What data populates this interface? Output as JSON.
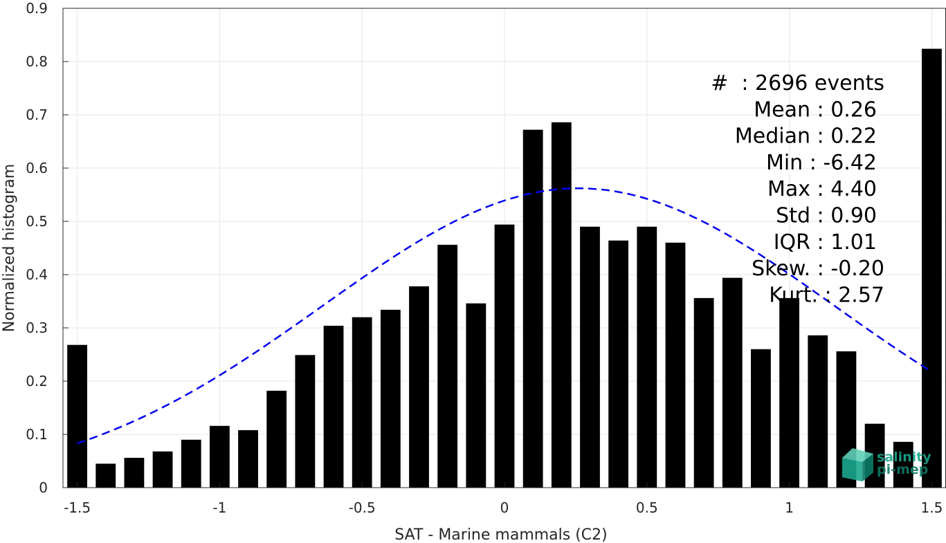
{
  "chart_data": {
    "type": "bar",
    "xlabel": "SAT - Marine mammals (C2)",
    "ylabel": "Normalized histogram",
    "xlim": [
      -1.55,
      1.55
    ],
    "ylim": [
      0,
      0.9
    ],
    "grid": true,
    "x_ticks": [
      -1.5,
      -1,
      -0.5,
      0,
      0.5,
      1,
      1.5
    ],
    "x_tick_labels": [
      "-1.5",
      "-1",
      "-0.5",
      "0",
      "0.5",
      "1",
      "1.5"
    ],
    "y_ticks": [
      0,
      0.1,
      0.2,
      0.3,
      0.4,
      0.5,
      0.6,
      0.7,
      0.8,
      0.9
    ],
    "y_tick_labels": [
      "0",
      "0.1",
      "0.2",
      "0.3",
      "0.4",
      "0.5",
      "0.6",
      "0.7",
      "0.8",
      "0.9"
    ],
    "bin_width": 0.1,
    "bar_color": "#000000",
    "bins_x": [
      -1.5,
      -1.4,
      -1.3,
      -1.2,
      -1.1,
      -1.0,
      -0.9,
      -0.8,
      -0.7,
      -0.6,
      -0.5,
      -0.4,
      -0.3,
      -0.2,
      -0.1,
      0.0,
      0.1,
      0.2,
      0.3,
      0.4,
      0.5,
      0.6,
      0.7,
      0.8,
      0.9,
      1.0,
      1.1,
      1.2,
      1.3,
      1.4,
      1.5
    ],
    "values": [
      0.268,
      0.045,
      0.056,
      0.068,
      0.09,
      0.116,
      0.108,
      0.182,
      0.249,
      0.304,
      0.32,
      0.334,
      0.378,
      0.456,
      0.346,
      0.494,
      0.672,
      0.686,
      0.49,
      0.464,
      0.49,
      0.46,
      0.356,
      0.394,
      0.26,
      0.356,
      0.286,
      0.256,
      0.12,
      0.086,
      0.824
    ],
    "fit_curve": {
      "type": "normal",
      "mean": 0.26,
      "std": 0.9,
      "peak": 0.562,
      "x_range": [
        -1.5,
        1.5
      ],
      "color": "#0000ee",
      "style": "dashed"
    },
    "annotations": [
      "#  : 2696 events",
      "Mean : 0.26",
      "Median : 0.22",
      "Min : -6.42",
      "Max : 4.40",
      "Std : 0.90",
      "IQR : 1.01",
      "Skew. : -0.20",
      "Kurt. : 2.57"
    ]
  },
  "logo": {
    "line1": "salinity",
    "line2": "pi-mep",
    "color": "#1aa88e"
  }
}
